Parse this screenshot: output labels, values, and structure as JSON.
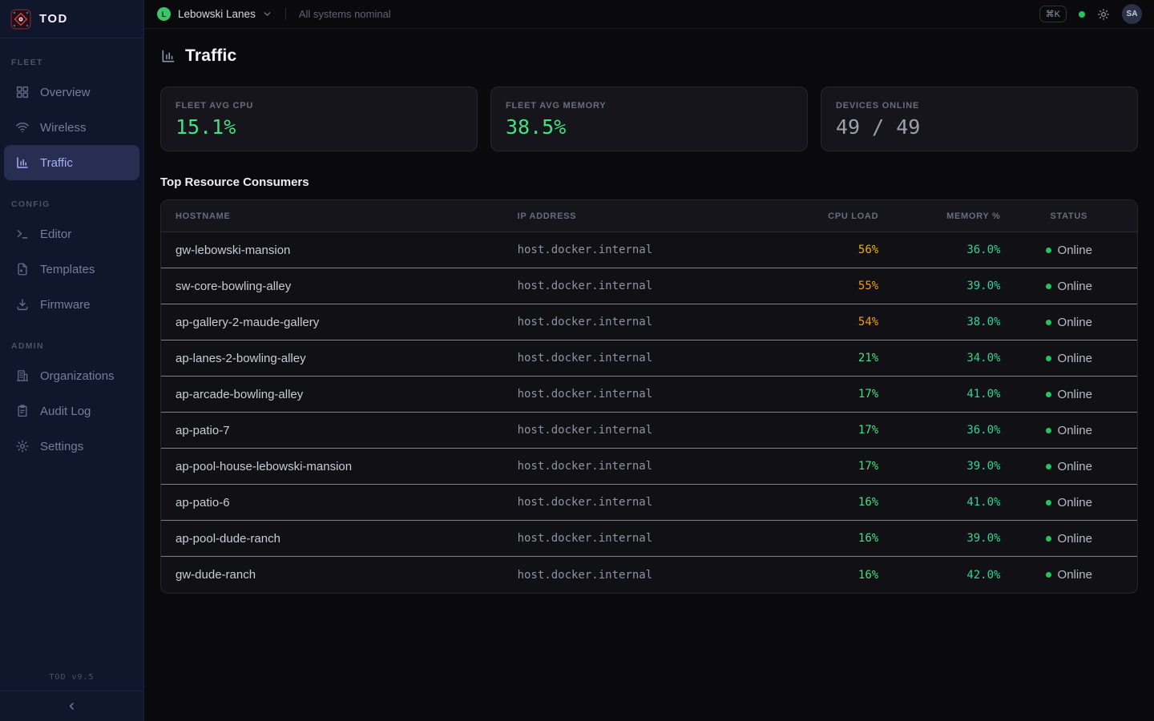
{
  "colors": {
    "accent_green": "#4ade80",
    "memory_green": "#34d399",
    "amber": "#eab308",
    "orange": "#f59e0b",
    "online_dot": "#22c55e",
    "active_indigo": "#a7b1f7"
  },
  "sidebar": {
    "logo_text": "TOD",
    "version": "TOD v9.5",
    "sections": [
      {
        "label": "FLEET",
        "items": [
          {
            "icon": "grid",
            "label": "Overview",
            "active": false
          },
          {
            "icon": "wifi",
            "label": "Wireless",
            "active": false
          },
          {
            "icon": "chart-bars",
            "label": "Traffic",
            "active": true
          }
        ]
      },
      {
        "label": "CONFIG",
        "items": [
          {
            "icon": "terminal",
            "label": "Editor",
            "active": false
          },
          {
            "icon": "file",
            "label": "Templates",
            "active": false
          },
          {
            "icon": "download",
            "label": "Firmware",
            "active": false
          }
        ]
      },
      {
        "label": "ADMIN",
        "items": [
          {
            "icon": "building",
            "label": "Organizations",
            "active": false
          },
          {
            "icon": "clipboard",
            "label": "Audit Log",
            "active": false
          },
          {
            "icon": "gear",
            "label": "Settings",
            "active": false
          }
        ]
      }
    ]
  },
  "header": {
    "org": {
      "initial": "L",
      "name": "Lebowski Lanes"
    },
    "status_text": "All systems nominal",
    "shortcut": "⌘K",
    "user_initials": "SA"
  },
  "page": {
    "title": "Traffic"
  },
  "cards": [
    {
      "label": "FLEET AVG CPU",
      "value": "15.1%",
      "color": "#4ade80"
    },
    {
      "label": "FLEET AVG MEMORY",
      "value": "38.5%",
      "color": "#4ade80"
    },
    {
      "label": "DEVICES ONLINE",
      "value": "49 / 49",
      "color": "#9aa0ac"
    }
  ],
  "table": {
    "title": "Top Resource Consumers",
    "columns": [
      {
        "label": "HOSTNAME",
        "align": "left"
      },
      {
        "label": "IP ADDRESS",
        "align": "left"
      },
      {
        "label": "CPU LOAD",
        "align": "right"
      },
      {
        "label": "MEMORY %",
        "align": "right"
      },
      {
        "label": "STATUS",
        "align": "center"
      }
    ],
    "rows": [
      {
        "hostname": "gw-lebowski-mansion",
        "ip": "host.docker.internal",
        "cpu": "56%",
        "cpu_color": "#eab308",
        "memory": "36.0%",
        "memory_color": "#34d399",
        "status": "Online"
      },
      {
        "hostname": "sw-core-bowling-alley",
        "ip": "host.docker.internal",
        "cpu": "55%",
        "cpu_color": "#f59e0b",
        "memory": "39.0%",
        "memory_color": "#34d399",
        "status": "Online"
      },
      {
        "hostname": "ap-gallery-2-maude-gallery",
        "ip": "host.docker.internal",
        "cpu": "54%",
        "cpu_color": "#f59e0b",
        "memory": "38.0%",
        "memory_color": "#34d399",
        "status": "Online"
      },
      {
        "hostname": "ap-lanes-2-bowling-alley",
        "ip": "host.docker.internal",
        "cpu": "21%",
        "cpu_color": "#4ade80",
        "memory": "34.0%",
        "memory_color": "#34d399",
        "status": "Online"
      },
      {
        "hostname": "ap-arcade-bowling-alley",
        "ip": "host.docker.internal",
        "cpu": "17%",
        "cpu_color": "#4ade80",
        "memory": "41.0%",
        "memory_color": "#34d399",
        "status": "Online"
      },
      {
        "hostname": "ap-patio-7",
        "ip": "host.docker.internal",
        "cpu": "17%",
        "cpu_color": "#4ade80",
        "memory": "36.0%",
        "memory_color": "#34d399",
        "status": "Online"
      },
      {
        "hostname": "ap-pool-house-lebowski-mansion",
        "ip": "host.docker.internal",
        "cpu": "17%",
        "cpu_color": "#4ade80",
        "memory": "39.0%",
        "memory_color": "#34d399",
        "status": "Online"
      },
      {
        "hostname": "ap-patio-6",
        "ip": "host.docker.internal",
        "cpu": "16%",
        "cpu_color": "#4ade80",
        "memory": "41.0%",
        "memory_color": "#34d399",
        "status": "Online"
      },
      {
        "hostname": "ap-pool-dude-ranch",
        "ip": "host.docker.internal",
        "cpu": "16%",
        "cpu_color": "#4ade80",
        "memory": "39.0%",
        "memory_color": "#34d399",
        "status": "Online"
      },
      {
        "hostname": "gw-dude-ranch",
        "ip": "host.docker.internal",
        "cpu": "16%",
        "cpu_color": "#4ade80",
        "memory": "42.0%",
        "memory_color": "#34d399",
        "status": "Online"
      }
    ]
  }
}
